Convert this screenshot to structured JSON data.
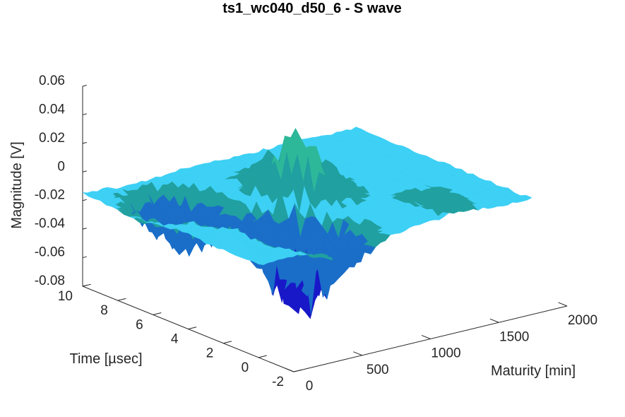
{
  "chart_data": {
    "type": "surface",
    "title": "ts1_wc040_d50_6 - S wave",
    "xlabel": "Maturity [min]",
    "ylabel": "Time [µsec]",
    "zlabel": "Magnitude [V]",
    "xlim": [
      0,
      2000
    ],
    "ylim": [
      -2,
      10
    ],
    "zlim": [
      -0.08,
      0.06
    ],
    "xticks": [
      0,
      500,
      1000,
      1500,
      2000
    ],
    "yticks": [
      -2,
      0,
      2,
      4,
      6,
      8,
      10
    ],
    "zticks": [
      -0.08,
      -0.06,
      -0.04,
      -0.02,
      0,
      0.02,
      0.04,
      0.06
    ],
    "xtick_labels": [
      "0",
      "500",
      "1000",
      "1500",
      "2000"
    ],
    "ytick_labels": [
      "-2",
      "0",
      "2",
      "4",
      "6",
      "8",
      "10"
    ],
    "ztick_labels": [
      "-0.08",
      "-0.06",
      "-0.04",
      "-0.02",
      "0",
      "0.02",
      "0.04",
      "0.06"
    ],
    "surface_extent": {
      "maturity": [
        0,
        2000
      ],
      "time": [
        0,
        10
      ]
    },
    "baseline_magnitude": -0.015,
    "features": [
      {
        "maturity": 200,
        "time": 4.5,
        "magnitude": -0.01
      },
      {
        "maturity": 1000,
        "time": 5.5,
        "magnitude": 0.03
      },
      {
        "maturity": 1500,
        "time": 1.5,
        "magnitude": -0.006
      },
      {
        "maturity": 350,
        "time": 7,
        "magnitude": -0.058
      },
      {
        "maturity": 650,
        "time": 3.2,
        "magnitude": -0.08
      },
      {
        "maturity": 700,
        "time": 1.5,
        "magnitude": -0.045
      }
    ],
    "colormap": [
      "#1818c8",
      "#1a6ec8",
      "#20a0a0",
      "#2eb89a",
      "#35c4e8",
      "#3dd0f5"
    ],
    "grid": false
  }
}
